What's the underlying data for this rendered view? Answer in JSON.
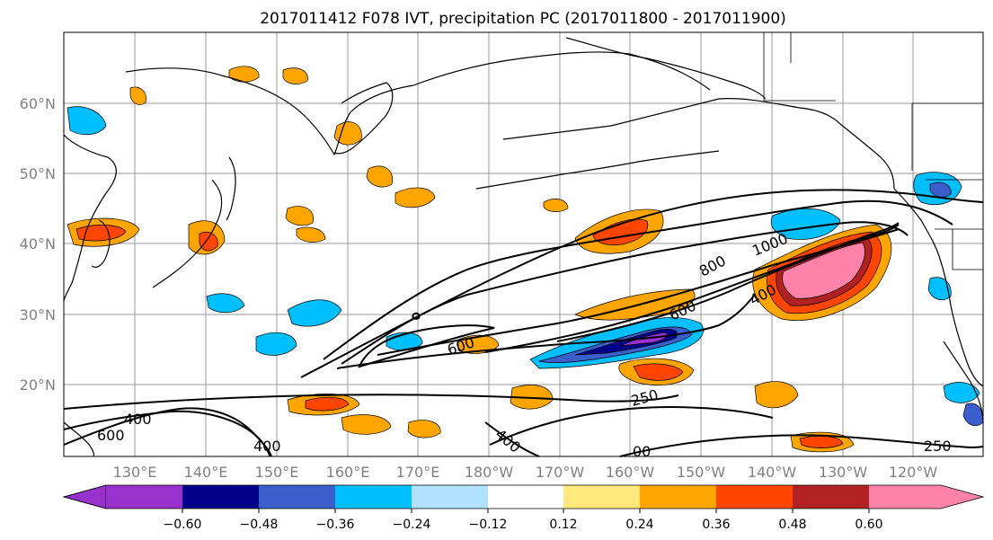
{
  "title": "2017011412 F078 IVT, precipitation PC (2017011800 - 2017011900)",
  "lat_labels": [
    "60°N",
    "50°N",
    "40°N",
    "30°N",
    "20°N"
  ],
  "lon_labels": [
    "130°E",
    "140°E",
    "150°E",
    "160°E",
    "170°E",
    "180°W",
    "170°W",
    "160°W",
    "150°W",
    "140°W",
    "130°W",
    "120°W"
  ],
  "colorbar": {
    "ticks": [
      "−0.60",
      "−0.48",
      "−0.36",
      "−0.24",
      "−0.12",
      "0.12",
      "0.24",
      "0.36",
      "0.48",
      "0.60"
    ],
    "colors": [
      "#9932cc",
      "#00008b",
      "#3a5fcd",
      "#00bfff",
      "#b0e2ff",
      "#ffffff",
      "#ffe97f",
      "#ffa500",
      "#ff4500",
      "#b22222",
      "#ff82ab"
    ]
  },
  "ivt_contour_labels": [
    "400",
    "600",
    "400",
    "600",
    "800",
    "1000",
    "400",
    "250",
    "400",
    "600",
    "250",
    "00"
  ],
  "colors": {
    "land_line": "#000000",
    "grid": "#9a9a9a",
    "contour": "#000000"
  }
}
